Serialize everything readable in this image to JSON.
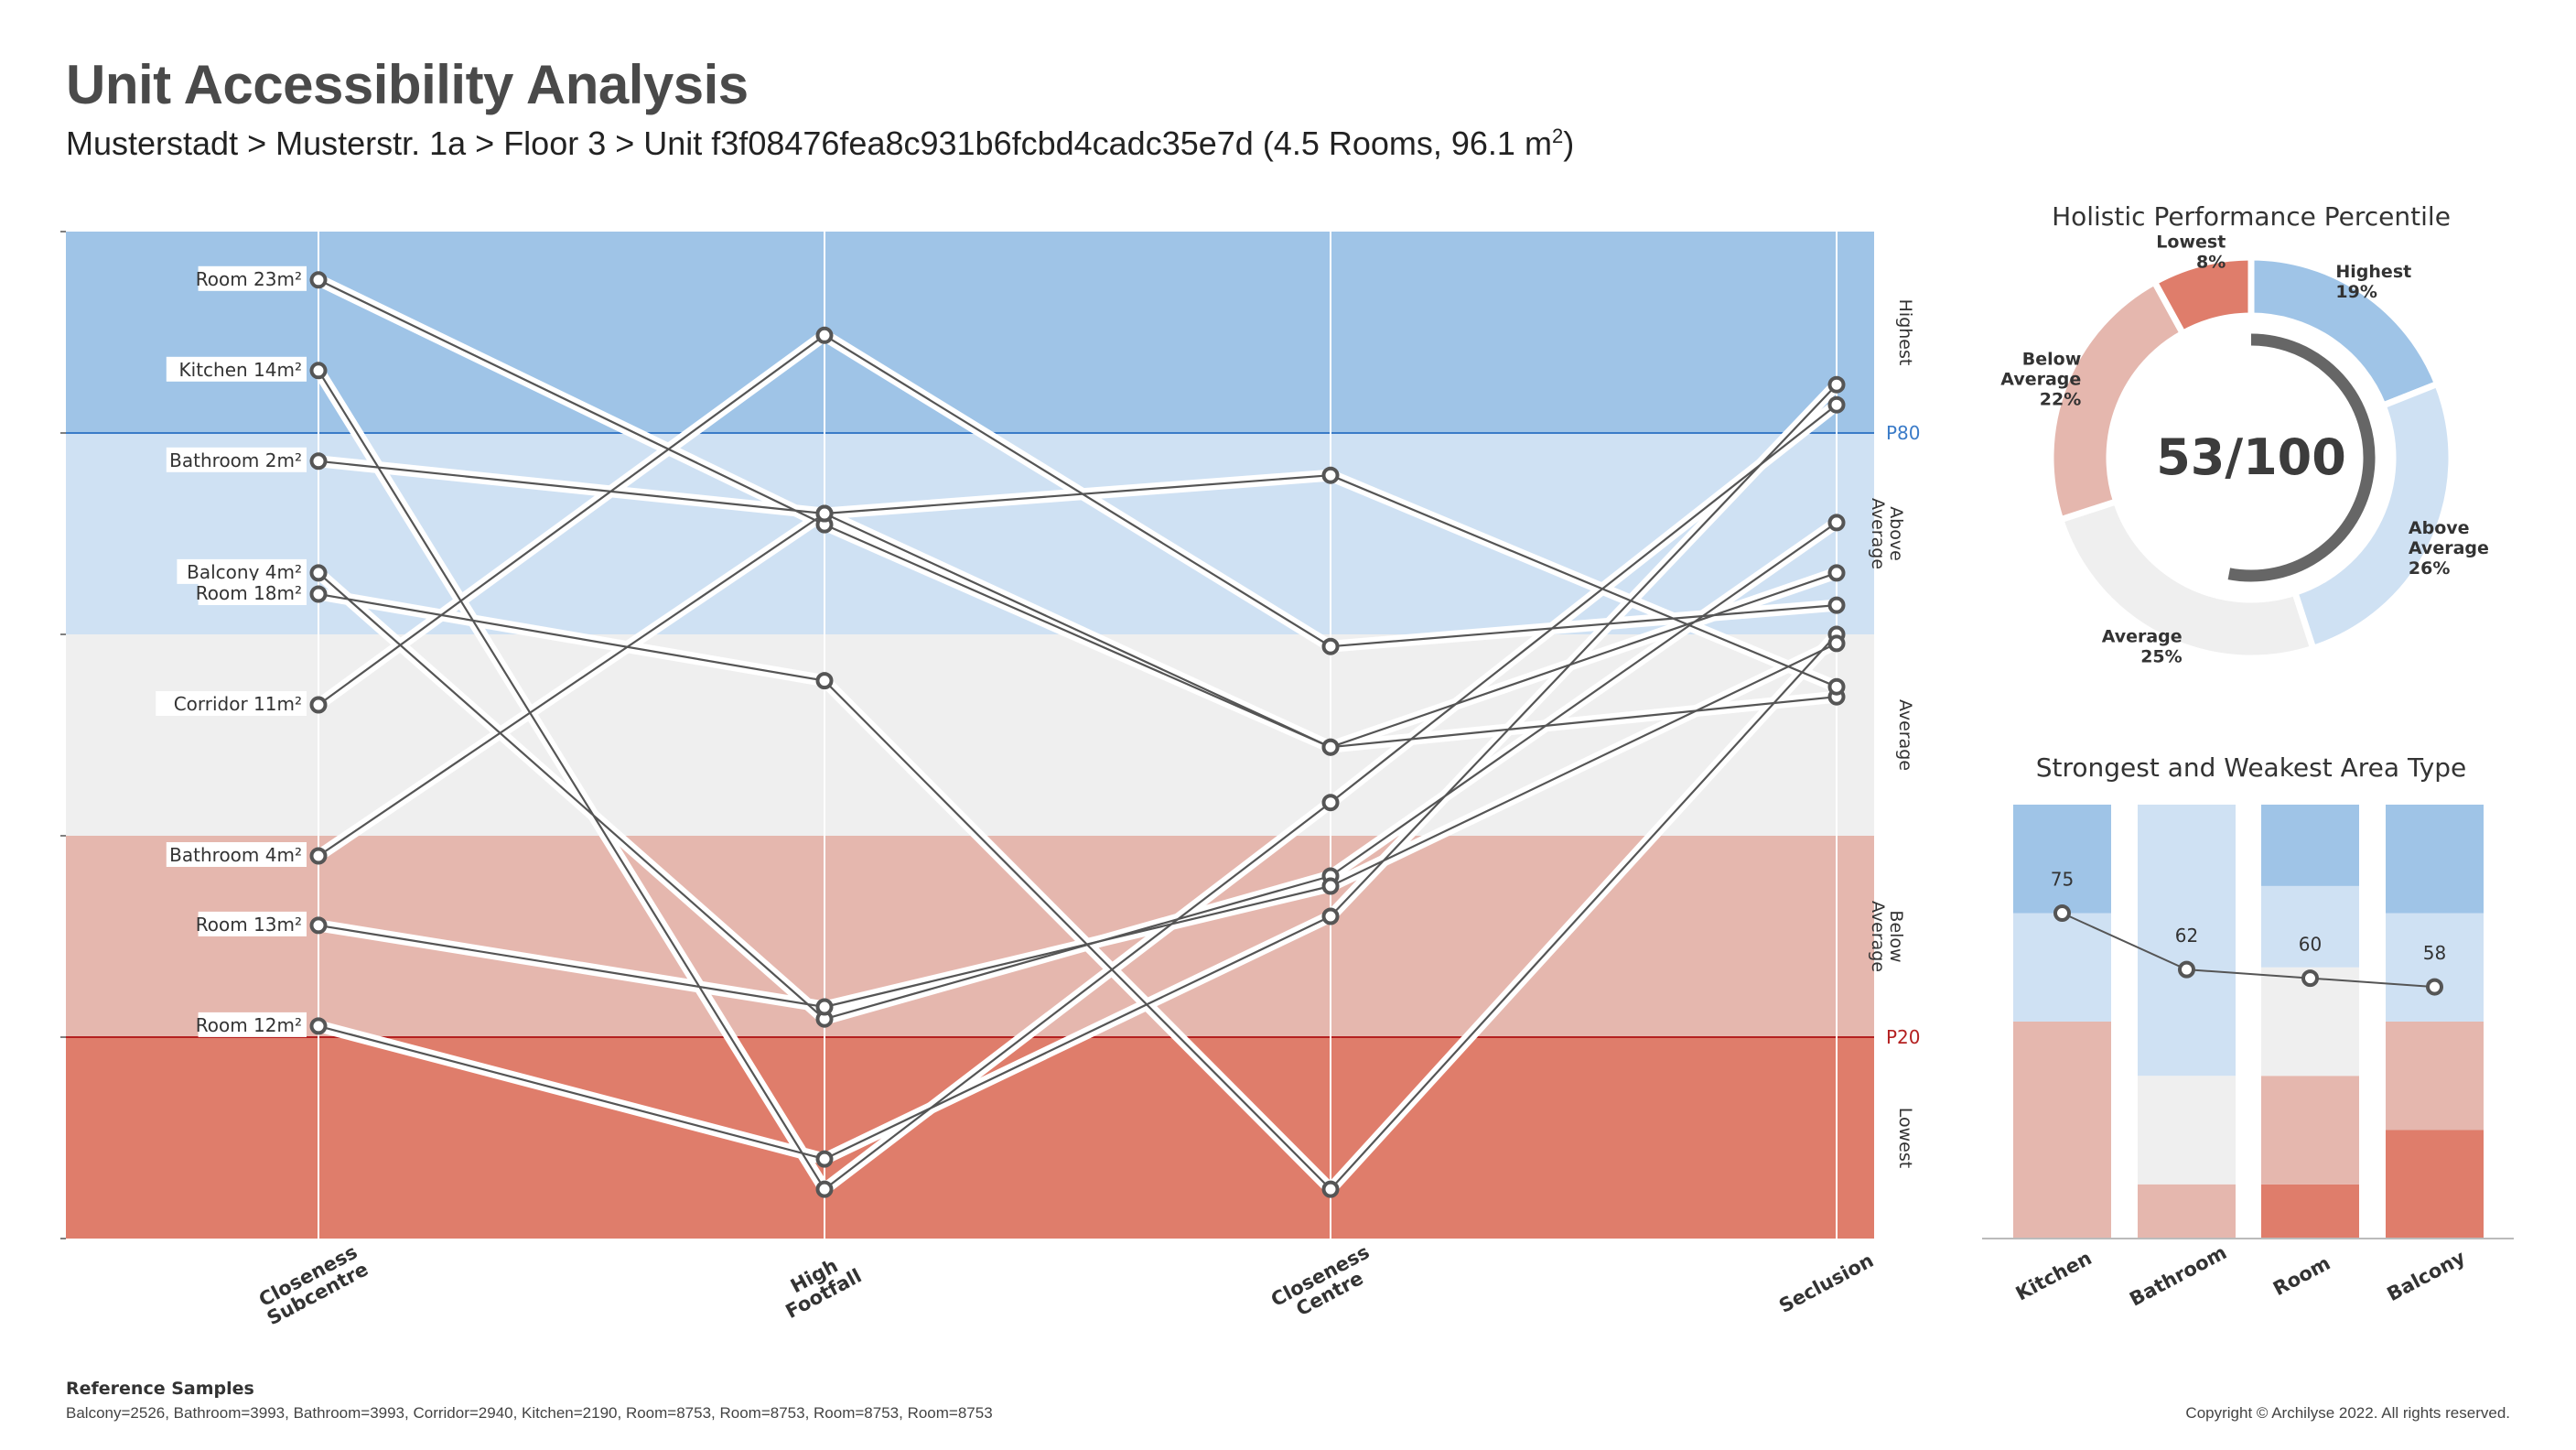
{
  "header": {
    "title": "Unit Accessibility Analysis",
    "subtitle_main": "Musterstadt > Musterstr. 1a > Floor 3 > Unit f3f08476fea8c931b6fcbd4cadc35e7d (4.5 Rooms, 96.1 m",
    "subtitle_sup": "2",
    "subtitle_end": ")"
  },
  "colors": {
    "highest": "#9fc4e7",
    "above_average": "#cfe1f3",
    "average": "#efefef",
    "below_average": "#e5b7ae",
    "lowest": "#df7d6b",
    "line": "#555555",
    "p80": "#3a7bc8",
    "p20": "#b42020",
    "gauge": "#666666"
  },
  "chart_data": [
    {
      "type": "parallel_coordinates",
      "axes": [
        "Closeness Subcentre",
        "High Footfall",
        "Closeness Centre",
        "Seclusion"
      ],
      "axis_label_lines": [
        [
          "Closeness",
          "Subcentre"
        ],
        [
          "High",
          "Footfall"
        ],
        [
          "Closeness",
          "Centre"
        ],
        [
          "Seclusion"
        ]
      ],
      "ylim": [
        0,
        100
      ],
      "bands": [
        {
          "label": "Highest",
          "from": 80,
          "to": 100
        },
        {
          "label": "Above Average",
          "from": 60,
          "to": 80
        },
        {
          "label": "Average",
          "from": 40,
          "to": 60
        },
        {
          "label": "Below Average",
          "from": 20,
          "to": 40
        },
        {
          "label": "Lowest",
          "from": 0,
          "to": 20
        }
      ],
      "band_label_lines": [
        [
          "Highest"
        ],
        [
          "Above",
          "Average"
        ],
        [
          "Average"
        ],
        [
          "Below",
          "Average"
        ],
        [
          "Lowest"
        ]
      ],
      "thresholds": [
        {
          "label": "P80",
          "value": 80
        },
        {
          "label": "P20",
          "value": 20
        }
      ],
      "series": [
        {
          "name": "Room 23m²",
          "values": [
            95.2,
            70.9,
            48.8,
            53.8
          ]
        },
        {
          "name": "Kitchen 14m²",
          "values": [
            86.2,
            4.9,
            43.3,
            82.8
          ]
        },
        {
          "name": "Bathroom 2m²",
          "values": [
            77.2,
            72.0,
            75.8,
            54.8
          ]
        },
        {
          "name": "Balcony 4m²",
          "values": [
            66.1,
            21.8,
            36.0,
            71.1
          ]
        },
        {
          "name": "Room 18m²",
          "values": [
            64.0,
            55.4,
            4.9,
            60.0
          ]
        },
        {
          "name": "Corridor 11m²",
          "values": [
            53.0,
            89.7,
            58.8,
            62.9
          ]
        },
        {
          "name": "Bathroom 4m²",
          "values": [
            38.0,
            72.0,
            48.8,
            66.1
          ]
        },
        {
          "name": "Room 13m²",
          "values": [
            31.1,
            23.0,
            35.0,
            59.1
          ]
        },
        {
          "name": "Room 12m²",
          "values": [
            21.1,
            7.9,
            32.0,
            84.8
          ]
        }
      ]
    },
    {
      "type": "donut",
      "title": "Holistic Performance Percentile",
      "center_label": "53/100",
      "score": 53,
      "slices": [
        {
          "name": "Highest",
          "value": 19
        },
        {
          "name": "Above Average",
          "value": 26
        },
        {
          "name": "Average",
          "value": 25
        },
        {
          "name": "Below Average",
          "value": 22
        },
        {
          "name": "Lowest",
          "value": 8
        }
      ],
      "slice_label_lines": [
        [
          "Highest",
          "19%"
        ],
        [
          "Above",
          "Average",
          "26%"
        ],
        [
          "Average",
          "25%"
        ],
        [
          "Below",
          "Average",
          "22%"
        ],
        [
          "Lowest",
          "8%"
        ]
      ]
    },
    {
      "type": "stacked_bar_with_line",
      "title": "Strongest and Weakest Area Type",
      "categories": [
        "Kitchen",
        "Bathroom",
        "Room",
        "Balcony"
      ],
      "scores": [
        75,
        62,
        60,
        58
      ],
      "ylim": [
        0,
        100
      ],
      "stack_order": [
        "Lowest",
        "Below Average",
        "Average",
        "Above Average",
        "Highest"
      ],
      "stacks": [
        [
          0,
          50,
          0,
          25,
          25
        ],
        [
          0,
          12.5,
          25,
          62.5,
          0
        ],
        [
          12.5,
          25,
          25,
          18.75,
          18.75
        ],
        [
          25,
          25,
          0,
          25,
          25
        ]
      ]
    }
  ],
  "footer": {
    "reference_title": "Reference Samples",
    "reference_text": "Balcony=2526, Bathroom=3993, Bathroom=3993, Corridor=2940, Kitchen=2190, Room=8753, Room=8753, Room=8753, Room=8753",
    "copyright": "Copyright © Archilyse 2022. All rights reserved."
  }
}
